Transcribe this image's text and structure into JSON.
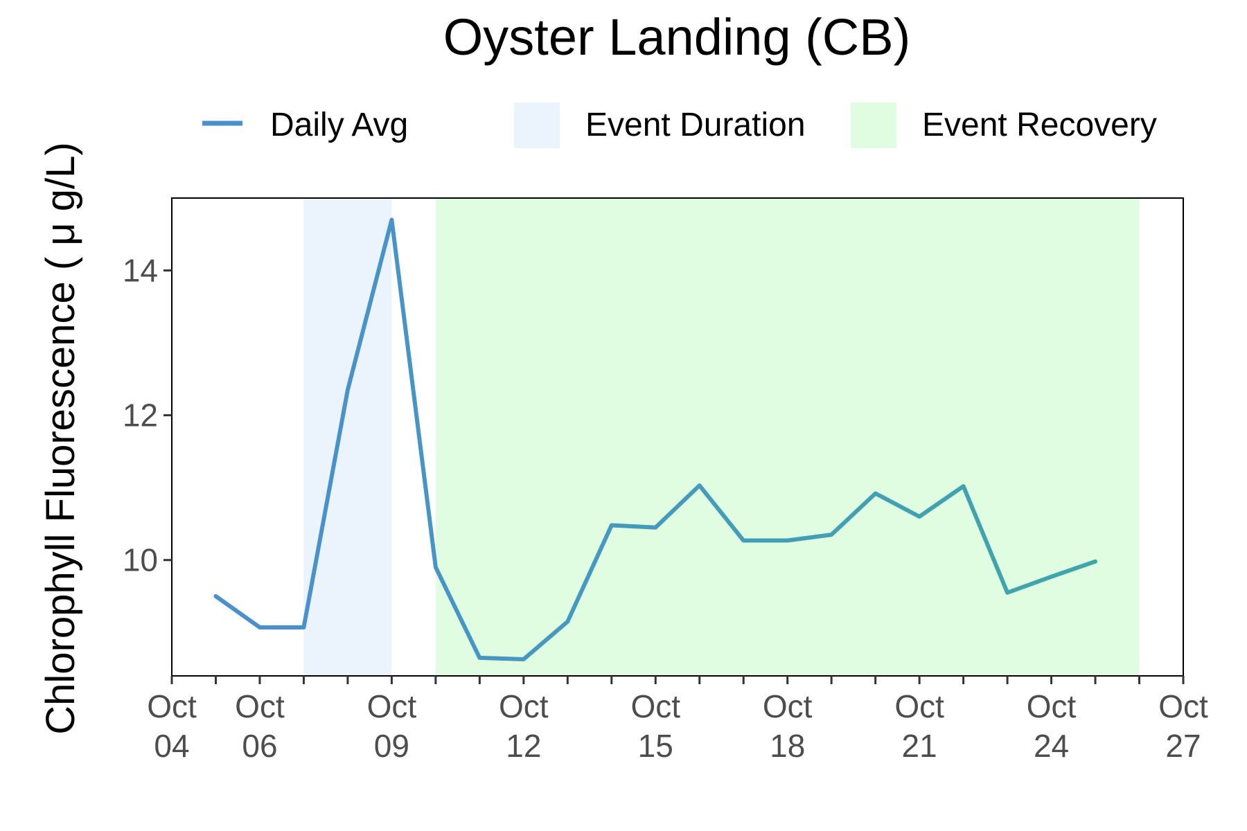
{
  "chart_data": {
    "type": "line",
    "title": "Oyster Landing (CB)",
    "ylabel": "Chlorophyll Fluorescence ( μ g/L)",
    "xlabel": "",
    "x": [
      "Oct 04",
      "Oct 05",
      "Oct 06",
      "Oct 07",
      "Oct 08",
      "Oct 09",
      "Oct 10",
      "Oct 11",
      "Oct 12",
      "Oct 13",
      "Oct 14",
      "Oct 15",
      "Oct 16",
      "Oct 17",
      "Oct 18",
      "Oct 19",
      "Oct 20",
      "Oct 21",
      "Oct 22",
      "Oct 23",
      "Oct 24",
      "Oct 25"
    ],
    "series": [
      {
        "name": "Daily Avg",
        "x": [
          "Oct 05",
          "Oct 06",
          "Oct 07",
          "Oct 08",
          "Oct 09",
          "Oct 10",
          "Oct 11",
          "Oct 12",
          "Oct 13",
          "Oct 14",
          "Oct 15",
          "Oct 16",
          "Oct 17",
          "Oct 18",
          "Oct 19",
          "Oct 20",
          "Oct 21",
          "Oct 22",
          "Oct 23",
          "Oct 24",
          "Oct 25"
        ],
        "values": [
          9.5,
          9.07,
          9.07,
          12.35,
          14.7,
          9.9,
          8.65,
          8.63,
          9.15,
          10.48,
          10.45,
          11.03,
          10.27,
          10.27,
          10.35,
          10.92,
          10.6,
          11.02,
          9.55,
          9.77,
          9.98
        ],
        "color": "#4a8fd0",
        "color_end": "#3ea6a8"
      }
    ],
    "shaded_regions": [
      {
        "label": "Event Duration",
        "start": "Oct 07",
        "end": "Oct 09",
        "color": "#ebf3fc"
      },
      {
        "label": "Event Recovery",
        "start": "Oct 10",
        "end": "Oct 26",
        "color": "#e1fde1"
      }
    ],
    "xlim": [
      "Oct 04",
      "Oct 27"
    ],
    "ylim": [
      8.4,
      15.0
    ],
    "x_ticks": [
      {
        "date": "Oct 04",
        "line1": "Oct",
        "line2": "04"
      },
      {
        "date": "Oct 06",
        "line1": "Oct",
        "line2": "06"
      },
      {
        "date": "Oct 09",
        "line1": "Oct",
        "line2": "09"
      },
      {
        "date": "Oct 12",
        "line1": "Oct",
        "line2": "12"
      },
      {
        "date": "Oct 15",
        "line1": "Oct",
        "line2": "15"
      },
      {
        "date": "Oct 18",
        "line1": "Oct",
        "line2": "18"
      },
      {
        "date": "Oct 21",
        "line1": "Oct",
        "line2": "21"
      },
      {
        "date": "Oct 24",
        "line1": "Oct",
        "line2": "24"
      },
      {
        "date": "Oct 27",
        "line1": "Oct",
        "line2": "27"
      }
    ],
    "x_minor_ticks": [
      "Oct 05",
      "Oct 07",
      "Oct 08",
      "Oct 10",
      "Oct 11",
      "Oct 13",
      "Oct 14",
      "Oct 16",
      "Oct 17",
      "Oct 19",
      "Oct 20",
      "Oct 22",
      "Oct 23",
      "Oct 25",
      "Oct 26"
    ],
    "y_ticks": [
      10,
      12,
      14
    ],
    "grid": false,
    "legend": {
      "placement": "top",
      "entries": [
        {
          "label": "Daily Avg",
          "kind": "line",
          "color": "#4a8fd0"
        },
        {
          "label": "Event Duration",
          "kind": "fill",
          "color": "#ebf3fc"
        },
        {
          "label": "Event Recovery",
          "kind": "fill",
          "color": "#e1fde1"
        }
      ]
    }
  }
}
